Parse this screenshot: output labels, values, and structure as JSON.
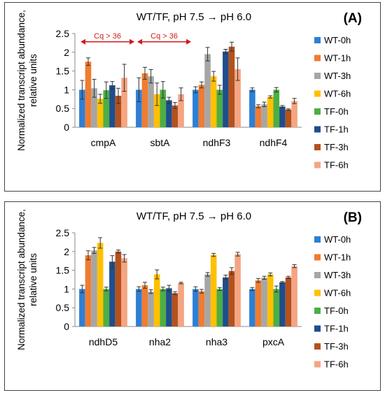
{
  "colors": {
    "WT-0h": "#2e7fd4",
    "WT-1h": "#f07c30",
    "WT-3h": "#a6a6a6",
    "WT-6h": "#ffc000",
    "TF-0h": "#4caf44",
    "TF-1h": "#1f4e8c",
    "TF-3h": "#b5511d",
    "TF-6h": "#f4a582",
    "annotation": "#d11a1a"
  },
  "chart_data": [
    {
      "type": "bar",
      "title": "WT/TF, pH 7.5 → pH 6.0",
      "panel_label": "(A)",
      "ylabel": "Normalized transcript abundance, relative units",
      "ylim": [
        0,
        2.5
      ],
      "yticks": [
        "0",
        "0.5",
        "1",
        "1.5",
        "2",
        "2.5"
      ],
      "grid": false,
      "legend_position": "right",
      "categories": [
        "cmpA",
        "sbtA",
        "ndhF3",
        "ndhF4"
      ],
      "series": [
        {
          "name": "WT-0h",
          "values": [
            1.0,
            1.0,
            1.0,
            1.0
          ],
          "errors": [
            0.25,
            0.32,
            0.08,
            0.05
          ]
        },
        {
          "name": "WT-1h",
          "values": [
            1.75,
            1.44,
            1.13,
            0.56
          ],
          "errors": [
            0.1,
            0.16,
            0.08,
            0.04
          ]
        },
        {
          "name": "WT-3h",
          "values": [
            1.04,
            1.36,
            1.95,
            0.61
          ],
          "errors": [
            0.24,
            0.18,
            0.18,
            0.06
          ]
        },
        {
          "name": "WT-6h",
          "values": [
            0.76,
            0.88,
            1.36,
            0.81
          ],
          "errors": [
            0.12,
            0.3,
            0.13,
            0.03
          ]
        },
        {
          "name": "TF-0h",
          "values": [
            0.99,
            1.0,
            1.0,
            1.0
          ],
          "errors": [
            0.22,
            0.22,
            0.12,
            0.06
          ]
        },
        {
          "name": "TF-1h",
          "values": [
            1.12,
            0.72,
            2.02,
            0.55
          ],
          "errors": [
            0.1,
            0.08,
            0.06,
            0.03
          ]
        },
        {
          "name": "TF-3h",
          "values": [
            0.84,
            0.58,
            2.15,
            0.47
          ],
          "errors": [
            0.2,
            0.08,
            0.12,
            0.02
          ]
        },
        {
          "name": "TF-6h",
          "values": [
            1.32,
            0.88,
            1.55,
            0.7
          ],
          "errors": [
            0.36,
            0.17,
            0.3,
            0.07
          ]
        }
      ],
      "annotations": [
        {
          "text": "Cq > 36",
          "from_category": "cmpA",
          "to_category": "sbtA",
          "y": 2.28
        },
        {
          "text": "Cq > 36",
          "from_category": "sbtA",
          "to_category": "ndhF3",
          "y": 2.28
        }
      ]
    },
    {
      "type": "bar",
      "title": "WT/TF, pH 7.5 → pH 6.0",
      "panel_label": "(B)",
      "ylabel": "Normalized transcript abundance, relative units",
      "ylim": [
        0,
        2.5
      ],
      "yticks": [
        "0",
        "0.5",
        "1",
        "1.5",
        "2",
        "2.5"
      ],
      "grid": false,
      "legend_position": "right",
      "categories": [
        "ndhD5",
        "nha2",
        "nha3",
        "pxcA"
      ],
      "series": [
        {
          "name": "WT-0h",
          "values": [
            1.0,
            1.0,
            1.0,
            1.0
          ],
          "errors": [
            0.1,
            0.06,
            0.06,
            0.04
          ]
        },
        {
          "name": "WT-1h",
          "values": [
            1.9,
            1.1,
            0.94,
            1.23
          ],
          "errors": [
            0.12,
            0.08,
            0.05,
            0.05
          ]
        },
        {
          "name": "WT-3h",
          "values": [
            2.03,
            0.93,
            1.39,
            1.3
          ],
          "errors": [
            0.08,
            0.05,
            0.05,
            0.04
          ]
        },
        {
          "name": "WT-6h",
          "values": [
            2.23,
            1.39,
            1.91,
            1.39
          ],
          "errors": [
            0.14,
            0.12,
            0.04,
            0.04
          ]
        },
        {
          "name": "TF-0h",
          "values": [
            1.0,
            1.0,
            1.0,
            1.0
          ],
          "errors": [
            0.05,
            0.05,
            0.04,
            0.08
          ]
        },
        {
          "name": "TF-1h",
          "values": [
            1.73,
            1.02,
            1.31,
            1.18
          ],
          "errors": [
            0.16,
            0.08,
            0.06,
            0.02
          ]
        },
        {
          "name": "TF-3h",
          "values": [
            2.0,
            0.89,
            1.48,
            1.31
          ],
          "errors": [
            0.04,
            0.04,
            0.09,
            0.03
          ]
        },
        {
          "name": "TF-6h",
          "values": [
            1.82,
            1.16,
            1.93,
            1.61
          ],
          "errors": [
            0.1,
            0.02,
            0.05,
            0.04
          ]
        }
      ]
    }
  ]
}
